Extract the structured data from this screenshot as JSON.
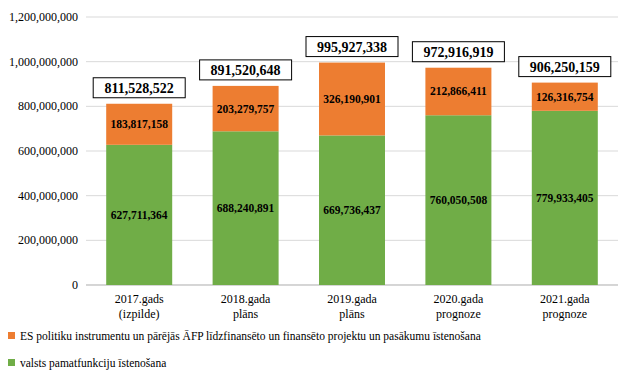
{
  "chart_data": {
    "type": "bar",
    "stacked": true,
    "data_labels": true,
    "grid": true,
    "legend": "bottom",
    "categories": [
      "2017.gads\n(izpilde)",
      "2018.gada\nplāns",
      "2019.gada\nplāns",
      "2020.gada\nprognoze",
      "2021.gada\nprognoze"
    ],
    "series": [
      {
        "name": "valsts pamatfunkciju īstenošana",
        "color": "#70ad47",
        "values": [
          627711364,
          688240891,
          669736437,
          760050508,
          779933405
        ],
        "value_labels": [
          "627,711,364",
          "688,240,891",
          "669,736,437",
          "760,050,508",
          "779,933,405"
        ]
      },
      {
        "name": "ES politiku instrumentu un pārējās ĀFP līdzfinansēto un finansēto projektu un pasākumu īstenošana",
        "color": "#ed7d31",
        "values": [
          183817158,
          203279757,
          326190901,
          212866411,
          126316754
        ],
        "value_labels": [
          "183,817,158",
          "203,279,757",
          "326,190,901",
          "212,866,411",
          "126,316,754"
        ]
      }
    ],
    "totals": [
      811528522,
      891520648,
      995927338,
      972916919,
      906250159
    ],
    "totals_labels": [
      "811,528,522",
      "891,520,648",
      "995,927,338",
      "972,916,919",
      "906,250,159"
    ],
    "ylim": [
      0,
      1200000000
    ],
    "yticks": [
      0,
      {
        "value": 200000000,
        "label": "200,000,000"
      },
      {
        "value": 400000000,
        "label": "400,000,000"
      },
      {
        "value": 600000000,
        "label": "600,000,000"
      },
      {
        "value": 800000000,
        "label": "800,000,000"
      },
      {
        "value": 1000000000,
        "label": "1,000,000,000"
      },
      {
        "value": 1200000000,
        "label": "1,200,000,000"
      }
    ]
  }
}
